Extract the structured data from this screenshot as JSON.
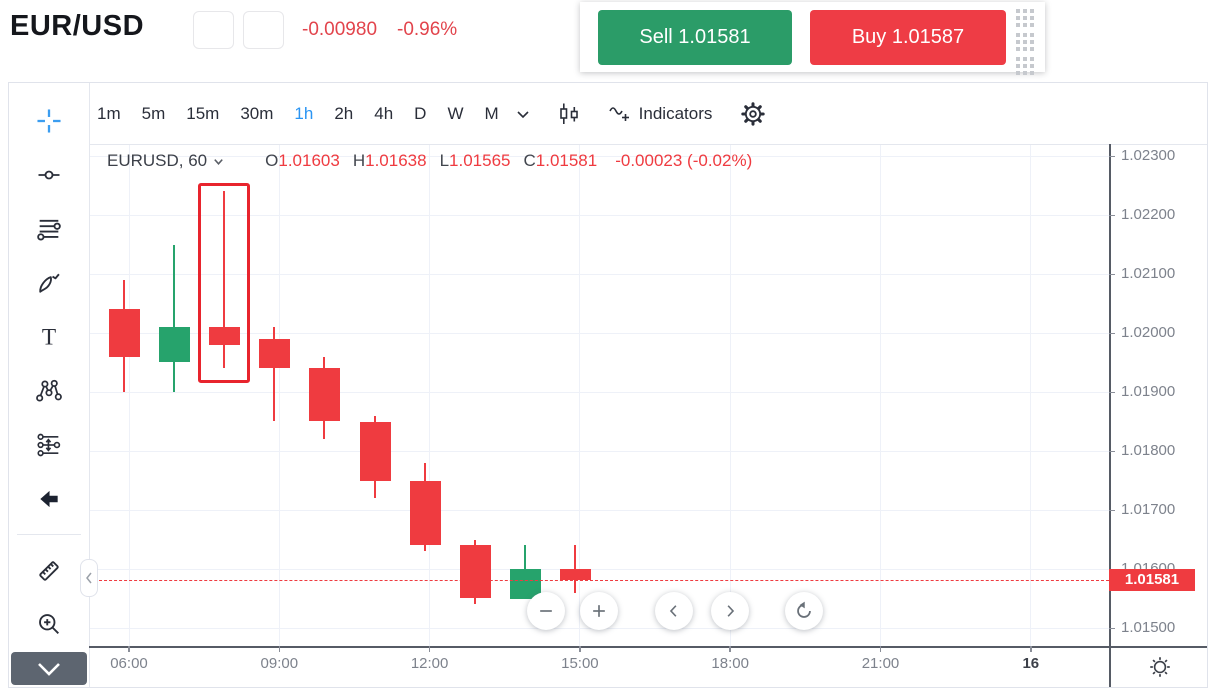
{
  "header": {
    "title": "EUR/USD",
    "change": "-0.00980",
    "change_percent": "-0.96%",
    "sell_label": "Sell 1.01581",
    "buy_label": "Buy 1.01587"
  },
  "toolbar": {
    "timeframes": [
      "1m",
      "5m",
      "15m",
      "30m",
      "1h",
      "2h",
      "4h",
      "D",
      "W",
      "M"
    ],
    "selected_timeframe": "1h",
    "indicators_label": "Indicators"
  },
  "drawing_tools": [
    "crosshair",
    "trend-line",
    "horizontal-lines",
    "brush",
    "text",
    "xabcd-pattern",
    "long-short-position",
    "arrow",
    "ruler",
    "zoom-in"
  ],
  "legend": {
    "symbol": "EURUSD, 60",
    "o_key": "O",
    "o_val": "1.01603",
    "h_key": "H",
    "h_val": "1.01638",
    "l_key": "L",
    "l_val": "1.01565",
    "c_key": "C",
    "c_val": "1.01581",
    "change": "-0.00023 (-0.02%)"
  },
  "colors": {
    "up": "#26a36c",
    "down": "#ef3b40",
    "accent_blue": "#2b95f3",
    "sell_green": "#2b9c68",
    "buy_red": "#ee3c45",
    "annotation_red": "#e8242d"
  },
  "chart_data": {
    "type": "candlestick",
    "title": "EURUSD 60-minute candlestick chart",
    "y_axis": {
      "labels": [
        "1.02300",
        "1.02200",
        "1.02100",
        "1.02000",
        "1.01900",
        "1.01800",
        "1.01700",
        "1.01600",
        "1.01500"
      ],
      "max": 1.023,
      "min": 1.015,
      "grid": true
    },
    "x_axis": {
      "ticks": [
        {
          "label": "06:00",
          "hour": 6
        },
        {
          "label": "09:00",
          "hour": 9
        },
        {
          "label": "12:00",
          "hour": 12
        },
        {
          "label": "15:00",
          "hour": 15
        },
        {
          "label": "18:00",
          "hour": 18
        },
        {
          "label": "21:00",
          "hour": 21
        },
        {
          "label": "16",
          "hour": 24,
          "bold": true
        }
      ]
    },
    "candles": [
      {
        "time": "06:00",
        "hour": 6,
        "open": 1.0204,
        "high": 1.0209,
        "low": 1.019,
        "close": 1.0196
      },
      {
        "time": "07:00",
        "hour": 7,
        "open": 1.0195,
        "high": 1.0215,
        "low": 1.019,
        "close": 1.0201
      },
      {
        "time": "08:00",
        "hour": 8,
        "open": 1.0201,
        "high": 1.0224,
        "low": 1.0194,
        "close": 1.0198
      },
      {
        "time": "09:00",
        "hour": 9,
        "open": 1.0199,
        "high": 1.0201,
        "low": 1.0185,
        "close": 1.0194
      },
      {
        "time": "10:00",
        "hour": 10,
        "open": 1.0194,
        "high": 1.0196,
        "low": 1.0182,
        "close": 1.0185
      },
      {
        "time": "11:00",
        "hour": 11,
        "open": 1.0185,
        "high": 1.0186,
        "low": 1.0172,
        "close": 1.0175
      },
      {
        "time": "12:00",
        "hour": 12,
        "open": 1.0175,
        "high": 1.0178,
        "low": 1.0163,
        "close": 1.0164
      },
      {
        "time": "13:00",
        "hour": 13,
        "open": 1.0164,
        "high": 1.0165,
        "low": 1.0154,
        "close": 1.0155
      },
      {
        "time": "14:00",
        "hour": 14,
        "open": 1.0155,
        "high": 1.0164,
        "low": 1.0155,
        "close": 1.016
      },
      {
        "time": "15:00",
        "hour": 15,
        "open": 1.016,
        "high": 1.0164,
        "low": 1.0156,
        "close": 1.01581
      }
    ],
    "highlight_box_candle_index": 2,
    "price_line": {
      "value": 1.01581,
      "label": "1.01581"
    }
  }
}
